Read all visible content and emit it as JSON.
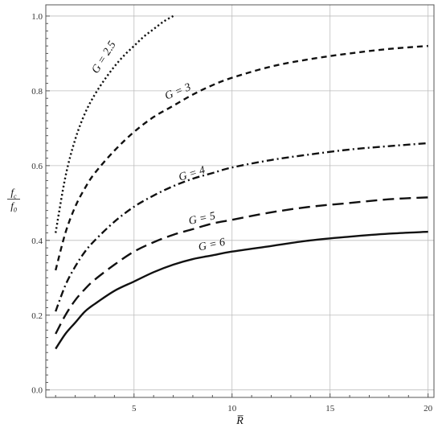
{
  "chart_data": {
    "type": "line",
    "title": "",
    "xlabel": "R̅",
    "ylabel": {
      "numerator": "f",
      "numerator_sub": "c",
      "denominator": "f",
      "denominator_sub": "0"
    },
    "xlim": [
      0.5,
      20.3
    ],
    "ylim": [
      -0.02,
      1.03
    ],
    "xticks": [
      5,
      10,
      15,
      20
    ],
    "yticks": [
      "0.0",
      "0.2",
      "0.4",
      "0.6",
      "0.8",
      "1.0"
    ],
    "grid": true,
    "series": [
      {
        "name": "G = 2.5",
        "dash": "dotted",
        "x": [
          1,
          1.5,
          2,
          2.5,
          3,
          3.5,
          4,
          4.5,
          5,
          5.5,
          6,
          6.5,
          7
        ],
        "y": [
          0.42,
          0.57,
          0.67,
          0.74,
          0.79,
          0.83,
          0.865,
          0.895,
          0.92,
          0.945,
          0.965,
          0.985,
          1.0
        ]
      },
      {
        "name": "G = 3",
        "dash": "dashed",
        "x": [
          1,
          1.5,
          2,
          2.5,
          3,
          4,
          5,
          6,
          7,
          8,
          9,
          10,
          12,
          14,
          16,
          18,
          20
        ],
        "y": [
          0.32,
          0.42,
          0.49,
          0.54,
          0.58,
          0.64,
          0.69,
          0.73,
          0.76,
          0.79,
          0.815,
          0.835,
          0.865,
          0.885,
          0.9,
          0.912,
          0.92
        ]
      },
      {
        "name": "G = 4",
        "dash": "dashdot",
        "x": [
          1,
          1.5,
          2,
          2.5,
          3,
          4,
          5,
          6,
          7,
          8,
          9,
          10,
          12,
          14,
          16,
          18,
          20
        ],
        "y": [
          0.21,
          0.28,
          0.33,
          0.37,
          0.4,
          0.45,
          0.49,
          0.52,
          0.545,
          0.565,
          0.58,
          0.595,
          0.615,
          0.63,
          0.643,
          0.652,
          0.66
        ]
      },
      {
        "name": "G = 5",
        "dash": "longdash",
        "x": [
          1,
          1.5,
          2,
          2.5,
          3,
          4,
          5,
          6,
          7,
          8,
          9,
          10,
          12,
          14,
          16,
          18,
          20
        ],
        "y": [
          0.15,
          0.2,
          0.24,
          0.27,
          0.295,
          0.335,
          0.37,
          0.395,
          0.415,
          0.43,
          0.445,
          0.455,
          0.475,
          0.49,
          0.5,
          0.51,
          0.515
        ]
      },
      {
        "name": "G = 6",
        "dash": "solid",
        "x": [
          1,
          1.5,
          2,
          2.5,
          3,
          4,
          5,
          6,
          7,
          8,
          9,
          10,
          12,
          14,
          16,
          18,
          20
        ],
        "y": [
          0.11,
          0.15,
          0.18,
          0.21,
          0.23,
          0.265,
          0.29,
          0.315,
          0.335,
          0.35,
          0.36,
          0.37,
          0.385,
          0.4,
          0.41,
          0.418,
          0.423
        ]
      }
    ],
    "annotations": [
      {
        "series": "G = 2.5",
        "text": "G = 2.5",
        "at_x": 3.6,
        "at_y": 0.885,
        "rotate_deg": -58
      },
      {
        "series": "G = 3",
        "text": "G = 3",
        "at_x": 7.3,
        "at_y": 0.79,
        "rotate_deg": -22
      },
      {
        "series": "G = 4",
        "text": "G = 4",
        "at_x": 8.0,
        "at_y": 0.57,
        "rotate_deg": -17
      },
      {
        "series": "G = 5",
        "text": "G = 5",
        "at_x": 8.5,
        "at_y": 0.45,
        "rotate_deg": -12
      },
      {
        "series": "G = 6",
        "text": "G = 6",
        "at_x": 9.0,
        "at_y": 0.38,
        "rotate_deg": -12
      }
    ]
  }
}
